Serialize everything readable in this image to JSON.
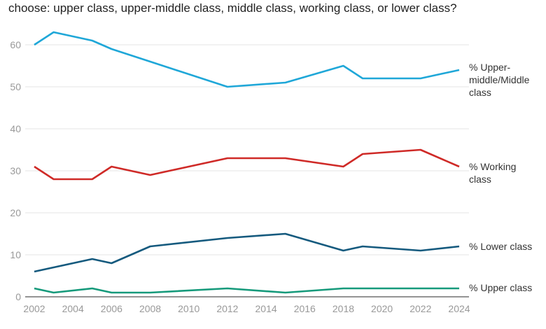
{
  "chart_data": {
    "type": "line",
    "title": "choose: upper class, upper-middle class, middle class, working class, or lower class?",
    "x": [
      2002,
      2003,
      2005,
      2006,
      2008,
      2012,
      2015,
      2018,
      2019,
      2022,
      2024
    ],
    "xticks": [
      "2002",
      "2004",
      "2006",
      "2008",
      "2010",
      "2012",
      "2014",
      "2016",
      "2018",
      "2020",
      "2022",
      "2024"
    ],
    "yticks": [
      "0",
      "10",
      "20",
      "30",
      "40",
      "50",
      "60"
    ],
    "xlim": [
      2002,
      2024
    ],
    "ylim": [
      0,
      60
    ],
    "grid": true,
    "legend": "direct labels at right end of lines",
    "series": [
      {
        "name": "% Upper-middle/Middle class",
        "label_lines": [
          "% Upper-",
          "middle/Middle",
          "class"
        ],
        "color": "#1fa7d8",
        "values": [
          60,
          63,
          61,
          59,
          56,
          50,
          51,
          55,
          52,
          52,
          54
        ]
      },
      {
        "name": "% Working class",
        "label_lines": [
          "% Working",
          "class"
        ],
        "color": "#cf2a27",
        "values": [
          31,
          28,
          28,
          31,
          29,
          33,
          33,
          31,
          34,
          35,
          31
        ]
      },
      {
        "name": "% Lower class",
        "label_lines": [
          "% Lower class"
        ],
        "color": "#155a7e",
        "values": [
          6,
          7,
          9,
          8,
          12,
          14,
          15,
          11,
          12,
          11,
          12
        ]
      },
      {
        "name": "% Upper class",
        "label_lines": [
          "% Upper class"
        ],
        "color": "#169a7b",
        "values": [
          2,
          1,
          2,
          1,
          1,
          2,
          1,
          2,
          2,
          2,
          2
        ]
      }
    ]
  }
}
